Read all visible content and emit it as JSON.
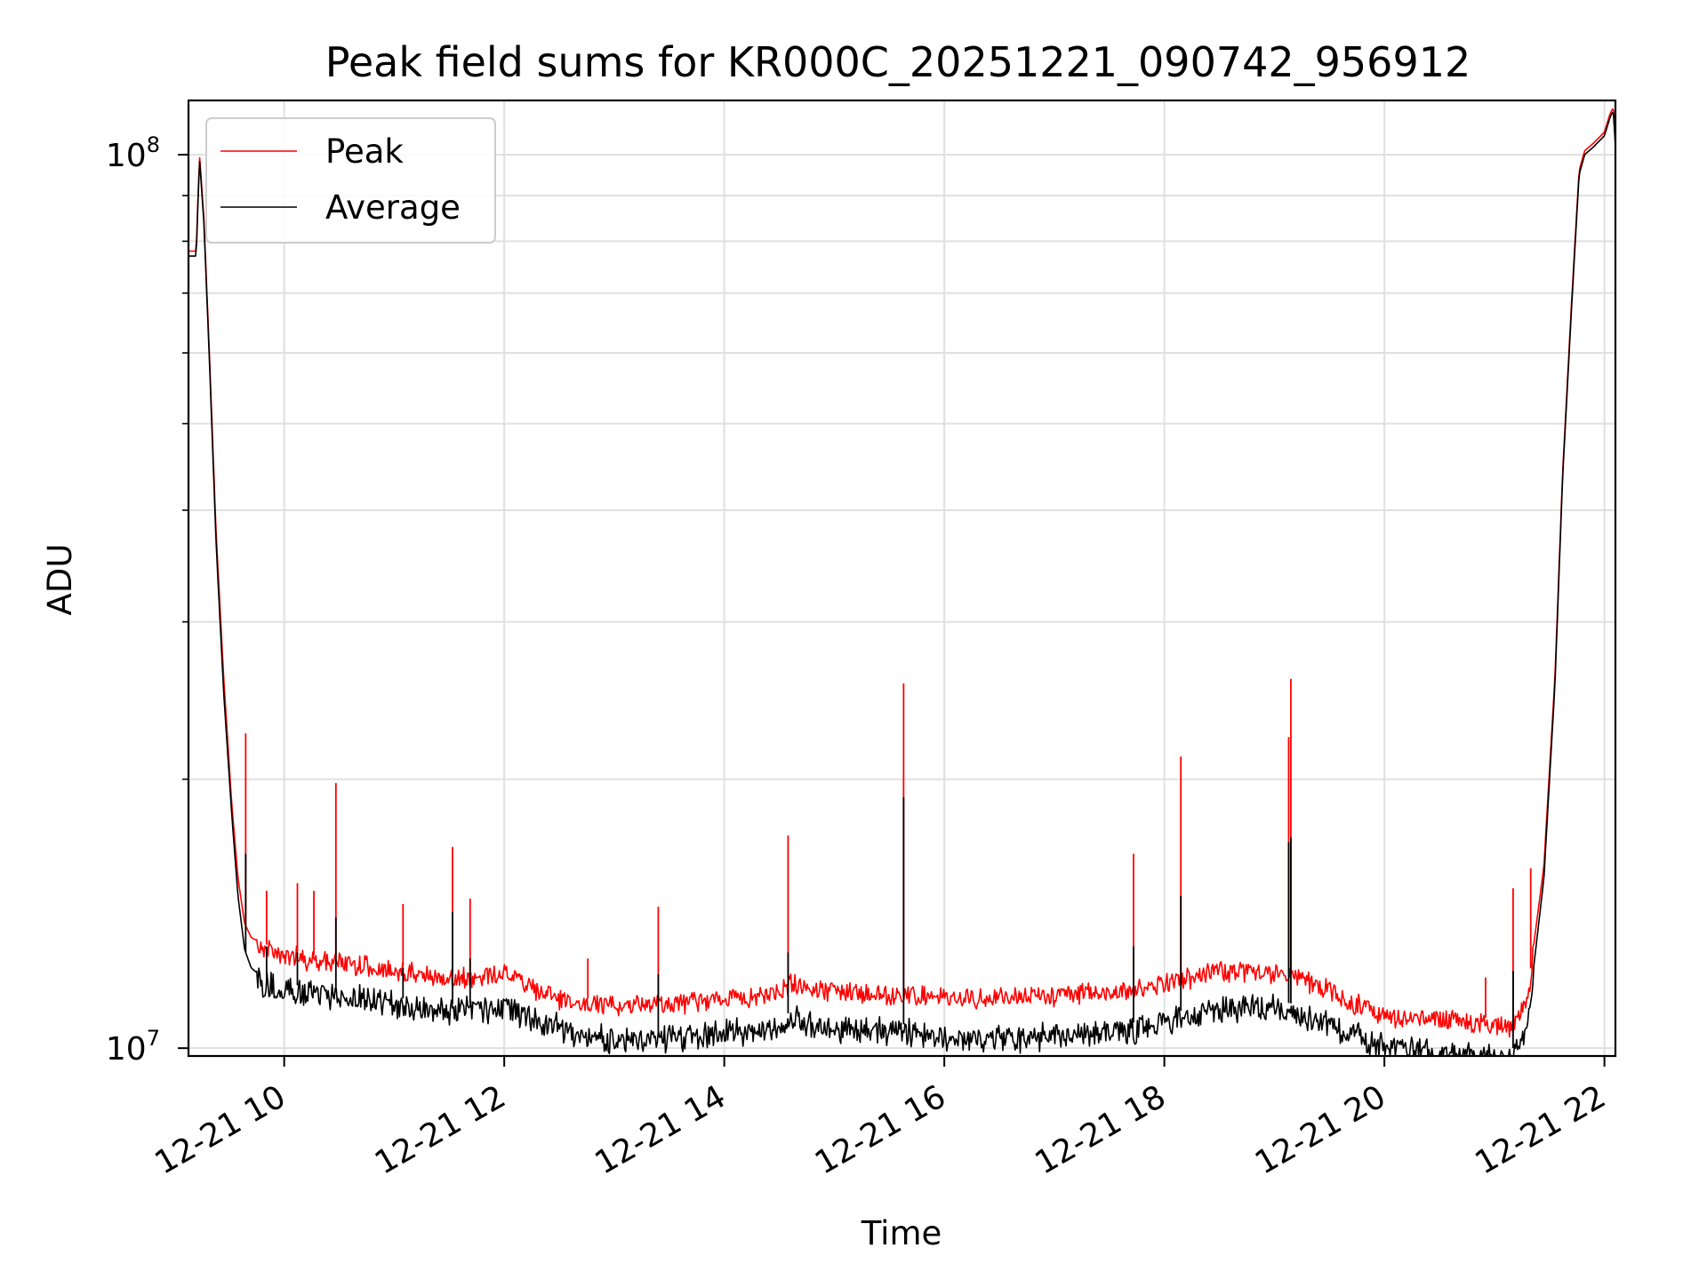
{
  "chart_data": {
    "type": "line",
    "title": "Peak field sums for KR000C_20251221_090742_956912",
    "xlabel": "Time",
    "ylabel": "ADU",
    "yscale": "log",
    "xlim_hours": [
      9.13,
      22.1
    ],
    "ylim": [
      9800000,
      115000000
    ],
    "grid": true,
    "legend_position": "upper-left",
    "x_ticks": [
      {
        "hour": 10,
        "label": "12-21 10"
      },
      {
        "hour": 12,
        "label": "12-21 12"
      },
      {
        "hour": 14,
        "label": "12-21 14"
      },
      {
        "hour": 16,
        "label": "12-21 16"
      },
      {
        "hour": 18,
        "label": "12-21 18"
      },
      {
        "hour": 20,
        "label": "12-21 20"
      },
      {
        "hour": 22,
        "label": "12-21 22"
      }
    ],
    "y_major_ticks": [
      {
        "value": 10000000,
        "base": "10",
        "exp": "7"
      },
      {
        "value": 100000000,
        "base": "10",
        "exp": "8"
      }
    ],
    "y_minor_ticks": [
      20000000,
      30000000,
      40000000,
      50000000,
      60000000,
      70000000,
      80000000,
      90000000
    ],
    "series": [
      {
        "name": "Peak",
        "color": "#ff0000",
        "x": [
          9.13,
          9.2,
          9.23,
          9.27,
          9.32,
          9.38,
          9.45,
          9.52,
          9.58,
          9.64,
          9.7,
          9.8,
          10.0,
          10.3,
          10.6,
          11.0,
          11.5,
          12.0,
          12.3,
          12.6,
          13.0,
          13.5,
          14.0,
          14.5,
          14.6,
          14.8,
          15.3,
          15.8,
          16.3,
          16.8,
          17.3,
          17.8,
          18.0,
          18.4,
          18.8,
          19.2,
          19.6,
          20.0,
          20.5,
          21.0,
          21.15,
          21.3,
          21.45,
          21.55,
          21.62,
          21.7,
          21.77,
          21.82,
          21.9,
          22.0,
          22.05,
          22.08,
          22.1
        ],
        "values": [
          78000000,
          78000000,
          100000000,
          85000000,
          60000000,
          38000000,
          26000000,
          19000000,
          15500000,
          13800000,
          13300000,
          13100000,
          12900000,
          12700000,
          12600000,
          12400000,
          12100000,
          12300000,
          11800000,
          11400000,
          11300000,
          11400000,
          11500000,
          11700000,
          12000000,
          11800000,
          11700000,
          11600000,
          11500000,
          11600000,
          11700000,
          11800000,
          12000000,
          12300000,
          12400000,
          12200000,
          11600000,
          11000000,
          10900000,
          10800000,
          10700000,
          11500000,
          16000000,
          26000000,
          44000000,
          68000000,
          96000000,
          101000000,
          103000000,
          106000000,
          111000000,
          113000000,
          103000000
        ],
        "spikes": [
          [
            9.65,
            22500000
          ],
          [
            9.84,
            15000000
          ],
          [
            10.12,
            15300000
          ],
          [
            10.27,
            15000000
          ],
          [
            10.47,
            19800000
          ],
          [
            11.08,
            14500000
          ],
          [
            11.53,
            16800000
          ],
          [
            11.69,
            14700000
          ],
          [
            12.76,
            12600000
          ],
          [
            13.4,
            14400000
          ],
          [
            14.58,
            17300000
          ],
          [
            15.63,
            25600000
          ],
          [
            17.72,
            16500000
          ],
          [
            18.15,
            21200000
          ],
          [
            19.13,
            22300000
          ],
          [
            19.15,
            25900000
          ],
          [
            20.92,
            12000000
          ],
          [
            21.17,
            15100000
          ],
          [
            21.33,
            15900000
          ]
        ]
      },
      {
        "name": "Average",
        "color": "#000000",
        "x": [
          9.13,
          9.2,
          9.23,
          9.27,
          9.32,
          9.38,
          9.45,
          9.52,
          9.58,
          9.64,
          9.7,
          9.8,
          10.0,
          10.3,
          10.6,
          11.0,
          11.5,
          12.0,
          12.3,
          12.6,
          13.0,
          13.5,
          14.0,
          14.5,
          14.6,
          14.8,
          15.3,
          15.8,
          16.3,
          16.8,
          17.3,
          17.8,
          18.0,
          18.4,
          18.8,
          19.2,
          19.6,
          20.0,
          20.5,
          21.0,
          21.15,
          21.3,
          21.45,
          21.55,
          21.62,
          21.7,
          21.77,
          21.82,
          21.9,
          22.0,
          22.05,
          22.08,
          22.1
        ],
        "values": [
          77000000,
          77000000,
          99000000,
          84000000,
          59000000,
          37000000,
          25000000,
          18500000,
          14800000,
          12900000,
          12300000,
          12000000,
          11800000,
          11700000,
          11600000,
          11400000,
          11200000,
          11300000,
          11000000,
          10600000,
          10400000,
          10500000,
          10600000,
          10700000,
          11000000,
          10800000,
          10700000,
          10600000,
          10400000,
          10500000,
          10600000,
          10700000,
          10900000,
          11200000,
          11400000,
          11200000,
          10700000,
          10200000,
          10000000,
          9950000,
          9900000,
          10700000,
          15500000,
          25500000,
          43500000,
          67000000,
          95000000,
          100000000,
          102000000,
          105000000,
          110000000,
          112000000,
          102000000
        ],
        "spikes": [
          [
            9.65,
            16500000
          ],
          [
            9.84,
            13000000
          ],
          [
            10.12,
            12800000
          ],
          [
            10.47,
            14000000
          ],
          [
            11.08,
            12300000
          ],
          [
            11.53,
            14200000
          ],
          [
            11.69,
            12600000
          ],
          [
            13.4,
            12100000
          ],
          [
            14.58,
            12800000
          ],
          [
            15.63,
            19100000
          ],
          [
            17.72,
            13000000
          ],
          [
            18.15,
            14800000
          ],
          [
            19.13,
            17000000
          ],
          [
            19.15,
            17200000
          ],
          [
            21.17,
            12200000
          ]
        ]
      }
    ]
  }
}
